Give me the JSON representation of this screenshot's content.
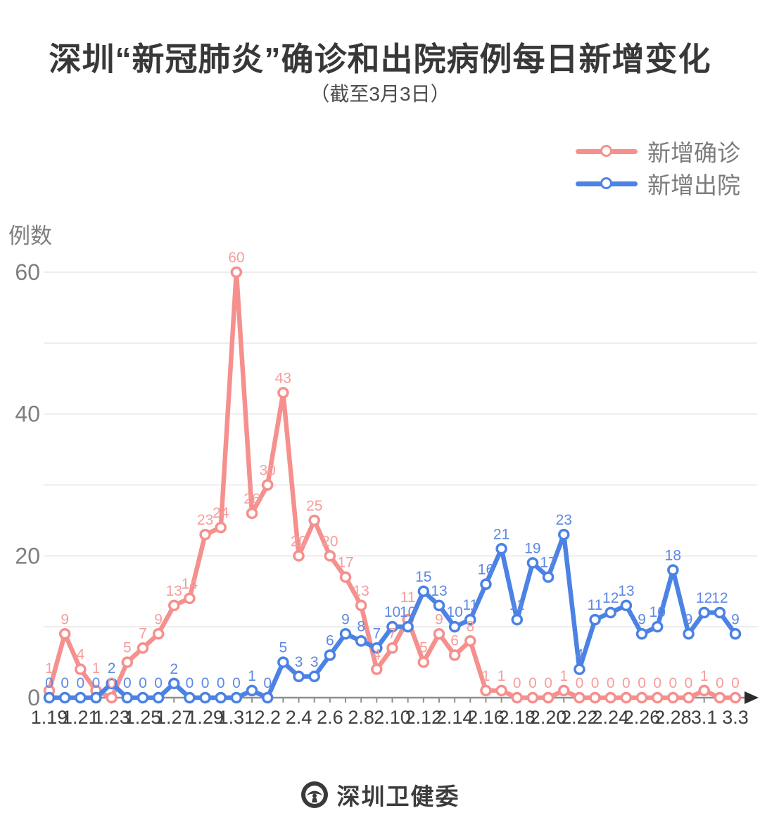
{
  "title": "深圳“新冠肺炎”确诊和出院病例每日新增变化",
  "subtitle": "（截至3月3日）",
  "y_axis_title": "例数",
  "legend": [
    {
      "label": "新增确诊",
      "color": "#f5908e"
    },
    {
      "label": "新增出院",
      "color": "#4b82e4"
    }
  ],
  "footer": {
    "brand": "深圳卫健委",
    "logo_icon": "shenzhen-health-commission-emblem"
  },
  "colors": {
    "confirmed_line": "#f5908e",
    "confirmed_label": "#f59e9c",
    "discharged_line": "#4b82e4",
    "discharged_label": "#5d89e4",
    "gridline": "#ececec",
    "axis": "#8f8f8f",
    "axis_arrow": "#2b2b2b",
    "x_tick_text": "#404040",
    "y_tick_text": "#7e7e7e",
    "marker_fill": "#ffffff"
  },
  "chart_data": {
    "type": "line",
    "title": "深圳“新冠肺炎”确诊和出院病例每日新增变化",
    "subtitle": "（截至3月3日）",
    "ylabel": "例数",
    "ylim": [
      0,
      60
    ],
    "yticks": [
      0,
      20,
      40,
      60
    ],
    "grid_values": [
      10,
      20,
      30,
      40,
      50,
      60
    ],
    "legend_position": "top-right",
    "marker": "open-circle",
    "point_labels": true,
    "x": [
      "1.19",
      "1.20",
      "1.21",
      "1.22",
      "1.23",
      "1.24",
      "1.25",
      "1.26",
      "1.27",
      "1.28",
      "1.29",
      "1.30",
      "1.31",
      "2.1",
      "2.2",
      "2.3",
      "2.4",
      "2.5",
      "2.6",
      "2.7",
      "2.8",
      "2.9",
      "2.10",
      "2.11",
      "2.12",
      "2.13",
      "2.14",
      "2.15",
      "2.16",
      "2.17",
      "2.18",
      "2.19",
      "2.20",
      "2.21",
      "2.22",
      "2.23",
      "2.24",
      "2.25",
      "2.26",
      "2.27",
      "2.28",
      "2.29",
      "3.1",
      "3.2",
      "3.3"
    ],
    "x_tick_labels": [
      "1.19",
      "1.21",
      "1.23",
      "1.25",
      "1.27",
      "1.29",
      "1.31",
      "2.2",
      "2.4",
      "2.6",
      "2.8",
      "2.10",
      "2.12",
      "2.14",
      "2.16",
      "2.18",
      "2.20",
      "2.22",
      "2.24",
      "2.26",
      "2.28",
      "3.1",
      "3.3"
    ],
    "series": [
      {
        "name": "新增确诊",
        "color": "#f5908e",
        "values": [
          1,
          9,
          4,
          1,
          0,
          5,
          7,
          9,
          13,
          14,
          23,
          24,
          60,
          26,
          30,
          43,
          20,
          25,
          20,
          17,
          13,
          4,
          7,
          11,
          5,
          9,
          6,
          8,
          1,
          1,
          0,
          0,
          0,
          1,
          0,
          0,
          0,
          0,
          0,
          0,
          0,
          0,
          1,
          0,
          0
        ]
      },
      {
        "name": "新增出院",
        "color": "#4b82e4",
        "values": [
          0,
          0,
          0,
          0,
          2,
          0,
          0,
          0,
          2,
          0,
          0,
          0,
          0,
          1,
          0,
          5,
          3,
          3,
          6,
          9,
          8,
          7,
          10,
          10,
          15,
          13,
          10,
          11,
          16,
          21,
          11,
          19,
          17,
          23,
          4,
          11,
          12,
          13,
          9,
          10,
          18,
          9,
          12,
          12,
          9
        ]
      }
    ]
  }
}
